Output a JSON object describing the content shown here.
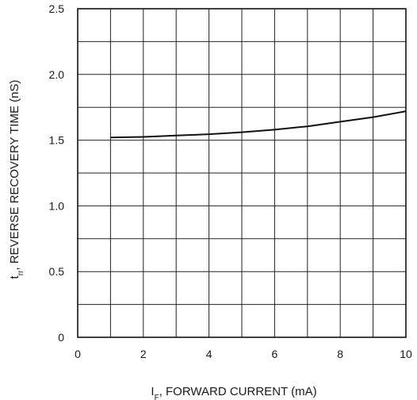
{
  "chart_data": {
    "type": "line",
    "title": "",
    "xlabel": "I_F, FORWARD CURRENT (mA)",
    "xlabel_parts": {
      "main": "I",
      "sub": "F",
      "rest": ", FORWARD CURRENT (mA)"
    },
    "ylabel": "t_rr, REVERSE RECOVERY TIME (nS)",
    "ylabel_parts": {
      "main": "t",
      "sub": "rr",
      "rest": ", REVERSE RECOVERY TIME (nS)"
    },
    "xlim": [
      0,
      10
    ],
    "ylim": [
      0,
      2.5
    ],
    "x_grid_step": 1,
    "y_grid_step": 0.25,
    "grid": true,
    "x_ticks": [
      {
        "value": 0,
        "label": "0"
      },
      {
        "value": 2,
        "label": "2"
      },
      {
        "value": 4,
        "label": "4"
      },
      {
        "value": 6,
        "label": "6"
      },
      {
        "value": 8,
        "label": "8"
      },
      {
        "value": 10,
        "label": "10"
      }
    ],
    "y_ticks": [
      {
        "value": 0,
        "label": "0"
      },
      {
        "value": 0.5,
        "label": "0.5"
      },
      {
        "value": 1.0,
        "label": "1.0"
      },
      {
        "value": 1.5,
        "label": "1.5"
      },
      {
        "value": 2.0,
        "label": "2.0"
      },
      {
        "value": 2.5,
        "label": "2.5"
      }
    ],
    "series": [
      {
        "color": "#111111",
        "x": [
          1,
          2,
          3,
          4,
          5,
          6,
          7,
          8,
          9,
          10
        ],
        "y": [
          1.52,
          1.525,
          1.535,
          1.545,
          1.56,
          1.58,
          1.605,
          1.64,
          1.675,
          1.72
        ]
      }
    ]
  }
}
